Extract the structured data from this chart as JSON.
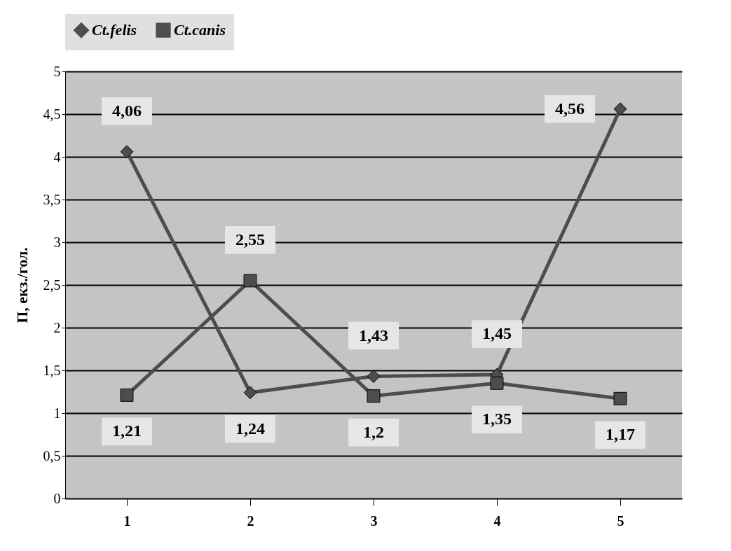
{
  "chart_data": {
    "type": "line",
    "ylabel": "П, екз./гол.",
    "categories": [
      "1",
      "2",
      "3",
      "4",
      "5"
    ],
    "series": [
      {
        "name": "Ct.felis",
        "color": "#4d4d4d",
        "marker": "diamond",
        "values": [
          4.06,
          1.24,
          1.43,
          1.45,
          4.56
        ],
        "value_labels": [
          "4,06",
          "1,24",
          "1,43",
          "1,45",
          "4,56"
        ]
      },
      {
        "name": "Ct.canis",
        "color": "#4d4d4d",
        "marker": "square",
        "values": [
          1.21,
          2.55,
          1.2,
          1.35,
          1.17
        ],
        "value_labels": [
          "1,21",
          "2,55",
          "1,2",
          "1,35",
          "1,17"
        ]
      }
    ],
    "ylim": [
      0,
      5
    ],
    "yticks": [
      0,
      {
        "value": 0.5,
        "label": "0,5"
      },
      1,
      {
        "value": 1.5,
        "label": "1,5"
      },
      2,
      {
        "value": 2.5,
        "label": "2,5"
      },
      3,
      {
        "value": 3.5,
        "label": "3,5"
      },
      4,
      {
        "value": 4.5,
        "label": "4,5"
      },
      5
    ],
    "grid": "y",
    "legend": "top"
  }
}
